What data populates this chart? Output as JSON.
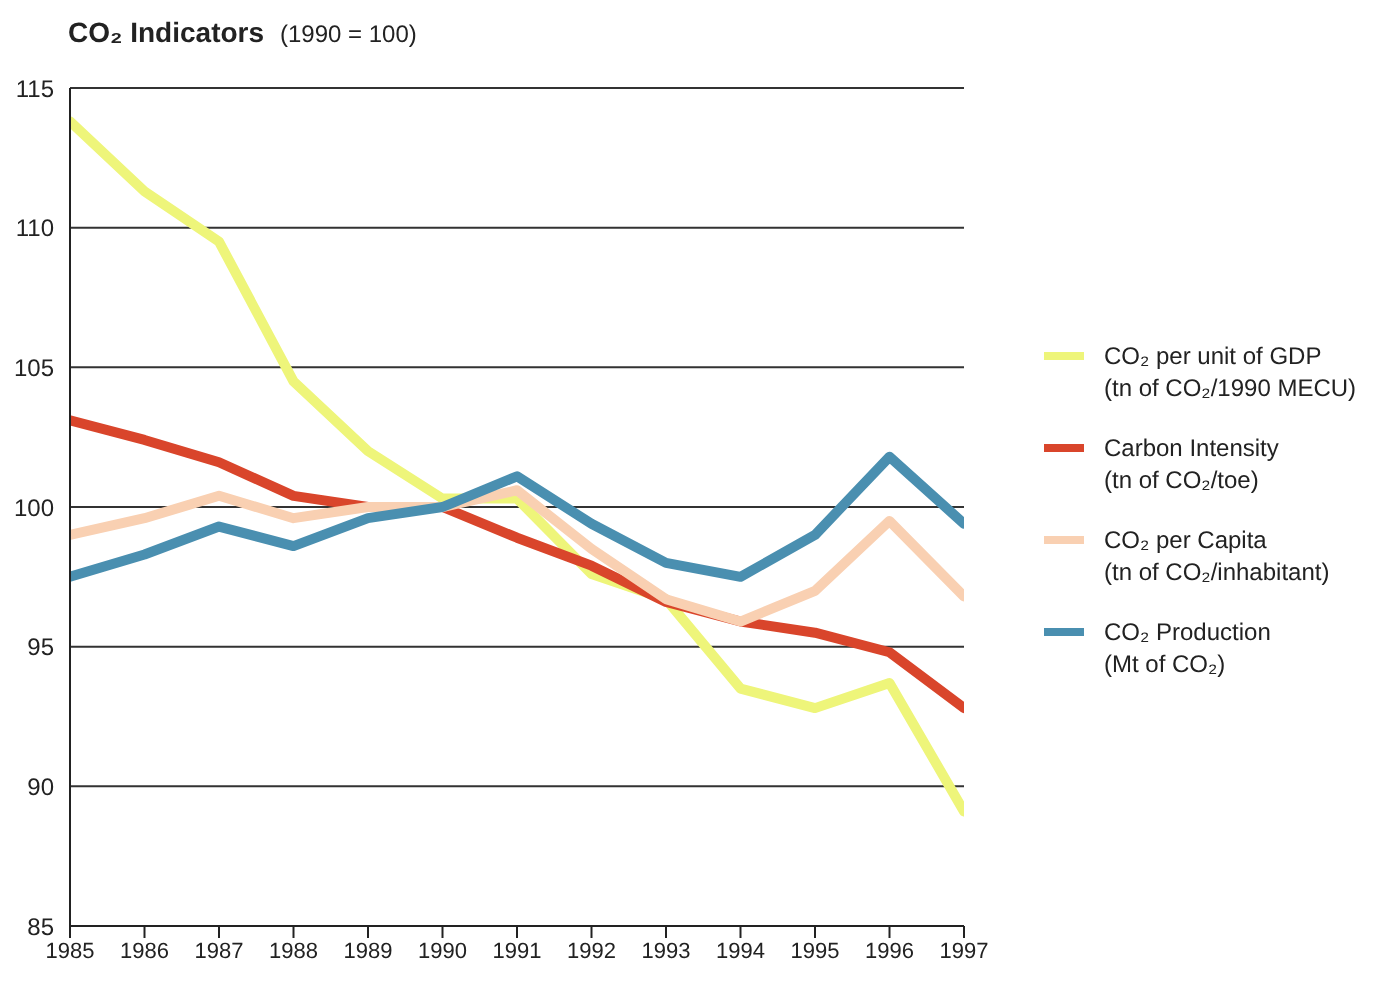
{
  "chart_data": {
    "type": "line",
    "title": "CO₂ Indicators",
    "subtitle": "(1990 = 100)",
    "categories": [
      "1985",
      "1986",
      "1987",
      "1988",
      "1989",
      "1990",
      "1991",
      "1992",
      "1993",
      "1994",
      "1995",
      "1996",
      "1997"
    ],
    "series": [
      {
        "name": "CO₂ per unit of GDP\n(tn of CO₂/1990 MECU)",
        "color": "#eef57a",
        "values": [
          113.8,
          111.3,
          109.5,
          104.5,
          102,
          100.3,
          100.3,
          97.6,
          96.7,
          93.5,
          92.8,
          93.7,
          89.1
        ]
      },
      {
        "name": "Carbon Intensity\n(tn of CO₂/toe)",
        "color": "#d9452b",
        "values": [
          103.1,
          102.4,
          101.6,
          100.4,
          100,
          100,
          98.9,
          97.9,
          96.6,
          95.9,
          95.5,
          94.8,
          92.8
        ]
      },
      {
        "name": "CO₂ per Capita\n(tn of CO₂/inhabitant)",
        "color": "#f9d0b2",
        "values": [
          99,
          99.6,
          100.4,
          99.6,
          100,
          100,
          100.6,
          98.5,
          96.7,
          95.9,
          97,
          99.5,
          96.8
        ]
      },
      {
        "name": "CO₂ Production\n(Mt of CO₂)",
        "color": "#4a8fb0",
        "values": [
          97.5,
          98.3,
          99.3,
          98.6,
          99.6,
          100,
          101.1,
          99.4,
          98,
          97.5,
          99,
          101.8,
          99.4
        ]
      }
    ],
    "ylim": [
      85,
      115
    ],
    "yticks": [
      85,
      90,
      95,
      100,
      105,
      110,
      115
    ],
    "grid": "y",
    "legend": "right",
    "marker": "none",
    "line_style": "solid"
  }
}
